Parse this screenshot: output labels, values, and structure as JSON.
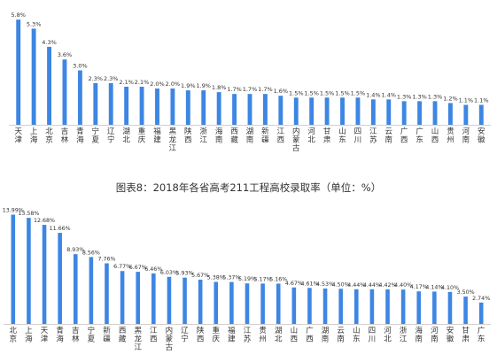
{
  "colors": {
    "bar": "#3d86e3",
    "baseline": "#d0d0d0",
    "text": "#333333"
  },
  "caption": "图表8：2018年各省高考211工程高校录取率（单位：%）",
  "chart_data": [
    {
      "type": "bar",
      "title": "",
      "categories": [
        "天津",
        "上海",
        "北京",
        "吉林",
        "青海",
        "宁夏",
        "辽宁",
        "湖北",
        "重庆",
        "福建",
        "黑龙江",
        "陕西",
        "浙江",
        "海南",
        "西藏",
        "湖南",
        "新疆",
        "江西",
        "内蒙古",
        "河北",
        "甘肃",
        "山东",
        "四川",
        "江苏",
        "云南",
        "广西",
        "广东",
        "山西",
        "贵州",
        "河南",
        "安徽"
      ],
      "values": [
        5.8,
        5.3,
        4.3,
        3.6,
        3.0,
        2.3,
        2.3,
        2.1,
        2.1,
        2.0,
        2.0,
        1.9,
        1.9,
        1.8,
        1.7,
        1.7,
        1.7,
        1.6,
        1.5,
        1.5,
        1.5,
        1.5,
        1.5,
        1.4,
        1.4,
        1.3,
        1.3,
        1.3,
        1.2,
        1.1,
        1.1
      ],
      "value_labels": [
        "5.8%",
        "5.3%",
        "4.3%",
        "3.6%",
        "3.0%",
        "2.3%",
        "2.3%",
        "2.1%",
        "2.1%",
        "2.0%",
        "2.0%",
        "1.9%",
        "1.9%",
        "1.8%",
        "1.7%",
        "1.7%",
        "1.7%",
        "1.6%",
        "1.5%",
        "1.5%",
        "1.5%",
        "1.5%",
        "1.5%",
        "1.4%",
        "1.4%",
        "1.3%",
        "1.3%",
        "1.3%",
        "1.2%",
        "1.1%",
        "1.1%"
      ],
      "ylim": [
        0,
        6.1
      ],
      "grid": false,
      "legend": "none"
    },
    {
      "type": "bar",
      "title": "",
      "categories": [
        "北京",
        "上海",
        "天津",
        "青海",
        "吉林",
        "宁夏",
        "新疆",
        "西藏",
        "黑龙江",
        "江西",
        "内蒙古",
        "辽宁",
        "陕西",
        "重庆",
        "福建",
        "江苏",
        "贵州",
        "湖北",
        "山西",
        "广西",
        "湖南",
        "云南",
        "山东",
        "四川",
        "河北",
        "浙江",
        "海南",
        "河南",
        "安徽",
        "甘肃",
        "广东"
      ],
      "values": [
        13.99,
        13.58,
        12.68,
        11.66,
        8.93,
        8.56,
        7.76,
        6.77,
        6.67,
        6.46,
        6.03,
        5.93,
        5.67,
        5.38,
        5.37,
        5.19,
        5.17,
        5.16,
        4.67,
        4.61,
        4.53,
        4.5,
        4.44,
        4.44,
        4.42,
        4.4,
        4.17,
        4.14,
        4.1,
        3.5,
        2.74
      ],
      "value_labels": [
        "13.99%",
        "13.58%",
        "12.68%",
        "11.66%",
        "8.93%",
        "8.56%",
        "7.76%",
        "6.77%",
        "6.67%",
        "6.46%",
        "6.03%",
        "5.93%",
        "5.67%",
        "5.38%",
        "5.37%",
        "5.19%",
        "5.17%",
        "5.16%",
        "4.67%",
        "4.61%",
        "4.53%",
        "4.50%",
        "4.44%",
        "4.44%",
        "4.42%",
        "4.40%",
        "4.17%",
        "4.14%",
        "4.10%",
        "3.50%",
        "2.74%"
      ],
      "ylim": [
        0,
        14.5
      ],
      "grid": false,
      "legend": "none"
    }
  ]
}
